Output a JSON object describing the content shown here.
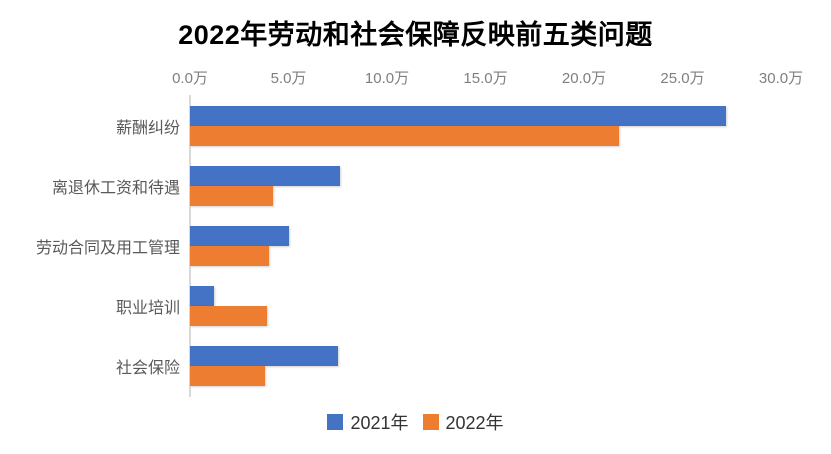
{
  "chart_data": {
    "type": "bar",
    "orientation": "horizontal",
    "title": "2022年劳动和社会保障反映前五类问题",
    "unit": "万",
    "categories": [
      "薪酬纠纷",
      "离退休工资和待遇",
      "劳动合同及用工管理",
      "职业培训",
      "社会保险"
    ],
    "series": [
      {
        "name": "2021年",
        "color": "#4472C4",
        "values": [
          27.2,
          7.6,
          5.0,
          1.2,
          7.5
        ]
      },
      {
        "name": "2022年",
        "color": "#ED7D31",
        "values": [
          21.8,
          4.2,
          4.0,
          3.9,
          3.8
        ]
      }
    ],
    "x_axis": {
      "min": 0,
      "max": 30,
      "tick_labels": [
        "0.0万",
        "5.0万",
        "10.0万",
        "15.0万",
        "20.0万",
        "25.0万",
        "30.0万"
      ]
    },
    "grid": false,
    "legend_position": "bottom",
    "colors": {
      "background": "#FFFFFF",
      "axis_line": "#D9D9D9",
      "tick_label": "#7F7F7F",
      "category_label": "#595959",
      "legend_label": "#333333",
      "title": "#000000"
    }
  }
}
